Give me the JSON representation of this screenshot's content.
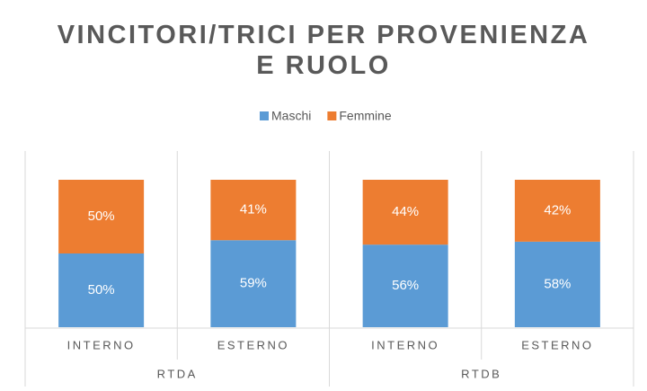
{
  "chart_data": {
    "type": "stacked_bar",
    "title": "VINCITORI/TRICI PER PROVENIENZA E RUOLO",
    "categories": [
      "INTERNO",
      "ESTERNO",
      "INTERNO",
      "ESTERNO"
    ],
    "groups": [
      "RTDA",
      "RTDB"
    ],
    "series": [
      {
        "name": "Maschi",
        "color": "#5b9bd5",
        "values": [
          50,
          59,
          56,
          58
        ],
        "value_labels": [
          "50%",
          "59%",
          "56%",
          "58%"
        ]
      },
      {
        "name": "Femmine",
        "color": "#ed7d31",
        "values": [
          50,
          41,
          44,
          42
        ],
        "value_labels": [
          "50%",
          "41%",
          "44%",
          "42%"
        ]
      }
    ],
    "ylim": [
      0,
      100
    ],
    "legend": "top"
  }
}
